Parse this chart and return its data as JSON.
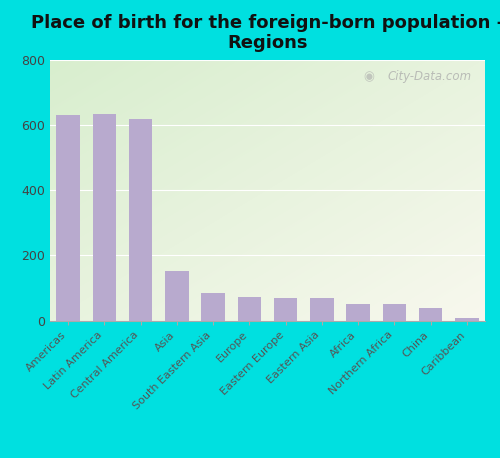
{
  "title": "Place of birth for the foreign-born population -\nRegions",
  "categories": [
    "Americas",
    "Latin America",
    "Central America",
    "Asia",
    "South Eastern Asia",
    "Europe",
    "Eastern Europe",
    "Eastern Asia",
    "Africa",
    "Northern Africa",
    "China",
    "Caribbean"
  ],
  "values": [
    630,
    632,
    618,
    152,
    85,
    72,
    70,
    68,
    52,
    50,
    40,
    8
  ],
  "bar_color": "#b8aace",
  "background_outer": "#00e0e0",
  "ylim": [
    0,
    800
  ],
  "yticks": [
    0,
    200,
    400,
    600,
    800
  ],
  "title_fontsize": 13,
  "tick_label_fontsize": 8,
  "watermark": "City-Data.com",
  "gradient_top_left": "#d8eece",
  "gradient_bottom_right": "#f8f8ee"
}
